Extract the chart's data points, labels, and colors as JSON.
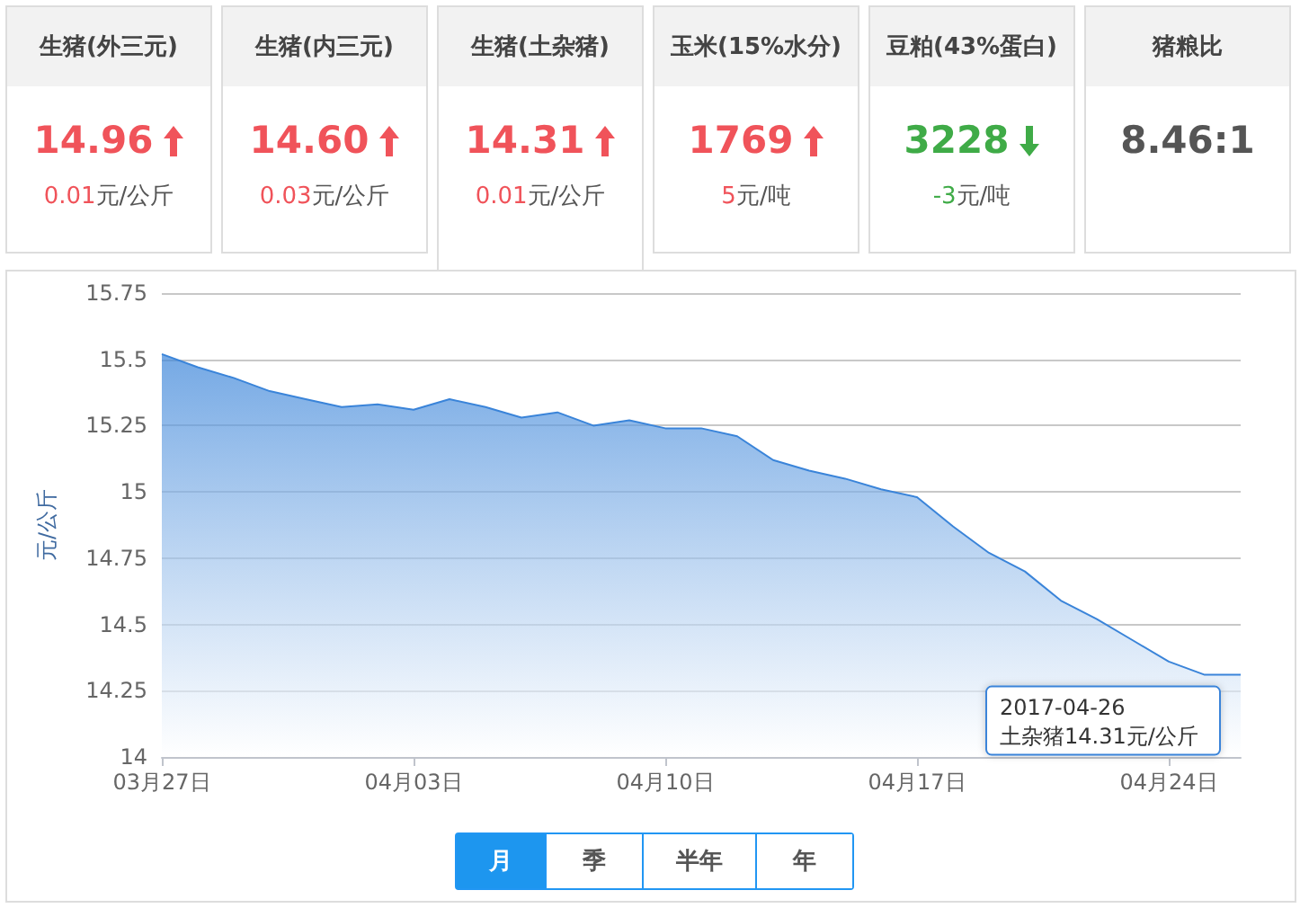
{
  "chart_data": [
    {
      "type": "other",
      "annotations": [
        "生猪(外三元)\n14.96\n0.01元/公斤",
        "生猪(内三元)\n14.60\n0.03元/公斤",
        "生猪(土杂猪)\n14.31\n0.01元/公斤",
        "玉米(15%水分)\n1769\n5元/吨",
        "豆粕(43%蛋白)\n3228\n-3元/吨",
        "猪粮比\n8.46:1"
      ]
    },
    {
      "type": "area",
      "ylabel": "元/公斤",
      "x": [
        "2017-03-27",
        "2017-03-28",
        "2017-03-29",
        "2017-03-30",
        "2017-03-31",
        "2017-04-01",
        "2017-04-02",
        "2017-04-03",
        "2017-04-04",
        "2017-04-05",
        "2017-04-06",
        "2017-04-07",
        "2017-04-08",
        "2017-04-09",
        "2017-04-10",
        "2017-04-11",
        "2017-04-12",
        "2017-04-13",
        "2017-04-14",
        "2017-04-15",
        "2017-04-16",
        "2017-04-17",
        "2017-04-18",
        "2017-04-19",
        "2017-04-20",
        "2017-04-21",
        "2017-04-22",
        "2017-04-23",
        "2017-04-24",
        "2017-04-25",
        "2017-04-26"
      ],
      "series": [
        {
          "color": "#3a84d9",
          "values": [
            15.52,
            15.47,
            15.43,
            15.38,
            15.35,
            15.32,
            15.33,
            15.31,
            15.35,
            15.32,
            15.28,
            15.3,
            15.25,
            15.27,
            15.24,
            15.24,
            15.21,
            15.12,
            15.08,
            15.05,
            15.01,
            14.98,
            14.87,
            14.77,
            14.7,
            14.59,
            14.52,
            14.44,
            14.36,
            14.31,
            14.31
          ]
        }
      ],
      "xlim": [
        "2017-03-27",
        "2017-04-26"
      ],
      "xticks": [
        {
          "value": "2017-03-27",
          "label": "03月27日"
        },
        {
          "value": "2017-04-03",
          "label": "04月03日"
        },
        {
          "value": "2017-04-10",
          "label": "04月10日"
        },
        {
          "value": "2017-04-17",
          "label": "04月17日"
        },
        {
          "value": "2017-04-24",
          "label": "04月24日"
        }
      ],
      "ylim": [
        14,
        15.75
      ],
      "yticks": [
        14,
        14.25,
        14.5,
        14.75,
        15,
        15.25,
        15.5,
        15.75
      ],
      "grid": "y",
      "marker": "none",
      "line_style": "solid",
      "annotations": [
        {
          "text": "2017-04-26\n土杂猪14.31元/公斤",
          "x": "2017-04-26",
          "y": 14.31
        },
        "月",
        "季",
        "半年",
        "年"
      ]
    }
  ]
}
